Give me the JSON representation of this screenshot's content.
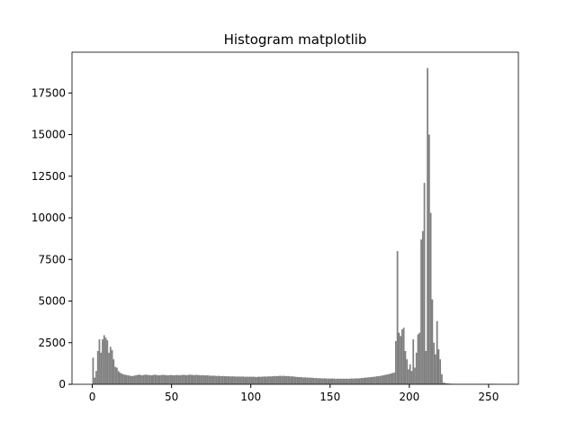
{
  "chart_data": {
    "type": "histogram",
    "title": "Histogram matplotlib",
    "color": "#808080",
    "bins": [
      0,
      1,
      2,
      3,
      4,
      5,
      6,
      7,
      8,
      9,
      10,
      11,
      12,
      13,
      14,
      15,
      16,
      17,
      18,
      19,
      20,
      21,
      22,
      23,
      24,
      25,
      26,
      27,
      28,
      29,
      30,
      31,
      32,
      33,
      34,
      35,
      36,
      37,
      38,
      39,
      40,
      41,
      42,
      43,
      44,
      45,
      46,
      47,
      48,
      49,
      50,
      51,
      52,
      53,
      54,
      55,
      56,
      57,
      58,
      59,
      60,
      61,
      62,
      63,
      64,
      65,
      66,
      67,
      68,
      69,
      70,
      71,
      72,
      73,
      74,
      75,
      76,
      77,
      78,
      79,
      80,
      81,
      82,
      83,
      84,
      85,
      86,
      87,
      88,
      89,
      90,
      91,
      92,
      93,
      94,
      95,
      96,
      97,
      98,
      99,
      100,
      101,
      102,
      103,
      104,
      105,
      106,
      107,
      108,
      109,
      110,
      111,
      112,
      113,
      114,
      115,
      116,
      117,
      118,
      119,
      120,
      121,
      122,
      123,
      124,
      125,
      126,
      127,
      128,
      129,
      130,
      131,
      132,
      133,
      134,
      135,
      136,
      137,
      138,
      139,
      140,
      141,
      142,
      143,
      144,
      145,
      146,
      147,
      148,
      149,
      150,
      151,
      152,
      153,
      154,
      155,
      156,
      157,
      158,
      159,
      160,
      161,
      162,
      163,
      164,
      165,
      166,
      167,
      168,
      169,
      170,
      171,
      172,
      173,
      174,
      175,
      176,
      177,
      178,
      179,
      180,
      181,
      182,
      183,
      184,
      185,
      186,
      187,
      188,
      189,
      190,
      191,
      192,
      193,
      194,
      195,
      196,
      197,
      198,
      199,
      200,
      201,
      202,
      203,
      204,
      205,
      206,
      207,
      208,
      209,
      210,
      211,
      212,
      213,
      214,
      215,
      216,
      217,
      218,
      219,
      220,
      221,
      222,
      223,
      224,
      225,
      226,
      227,
      228,
      229,
      230,
      231,
      232,
      233,
      234,
      235,
      236,
      237,
      238,
      239,
      240,
      241,
      242,
      243,
      244,
      245,
      246,
      247,
      248,
      249,
      250,
      251,
      252,
      253,
      254,
      255,
      256
    ],
    "counts": [
      1600,
      400,
      800,
      2000,
      2700,
      1900,
      2700,
      2950,
      2800,
      2650,
      1900,
      2250,
      2050,
      1500,
      1050,
      1000,
      800,
      700,
      650,
      600,
      580,
      560,
      540,
      520,
      500,
      500,
      520,
      540,
      560,
      580,
      560,
      540,
      560,
      580,
      570,
      560,
      550,
      540,
      560,
      580,
      560,
      550,
      540,
      560,
      570,
      560,
      550,
      540,
      550,
      560,
      550,
      540,
      550,
      560,
      550,
      540,
      560,
      570,
      560,
      550,
      560,
      580,
      570,
      560,
      550,
      570,
      560,
      550,
      540,
      550,
      540,
      530,
      540,
      530,
      520,
      510,
      520,
      510,
      500,
      510,
      500,
      490,
      500,
      490,
      480,
      490,
      480,
      470,
      480,
      470,
      470,
      460,
      470,
      460,
      470,
      460,
      450,
      460,
      450,
      460,
      450,
      460,
      450,
      440,
      450,
      460,
      450,
      460,
      470,
      460,
      470,
      480,
      470,
      480,
      490,
      500,
      490,
      500,
      510,
      500,
      510,
      500,
      490,
      500,
      480,
      470,
      480,
      460,
      450,
      440,
      430,
      440,
      420,
      410,
      420,
      400,
      410,
      390,
      400,
      380,
      370,
      380,
      360,
      370,
      360,
      350,
      360,
      350,
      340,
      350,
      340,
      350,
      340,
      330,
      340,
      330,
      340,
      330,
      340,
      330,
      340,
      330,
      340,
      350,
      340,
      350,
      360,
      350,
      360,
      370,
      380,
      390,
      400,
      410,
      420,
      430,
      440,
      450,
      460,
      480,
      490,
      500,
      520,
      540,
      560,
      580,
      600,
      620,
      650,
      680,
      700,
      2600,
      8000,
      3100,
      2900,
      3300,
      3400,
      2000,
      1500,
      900,
      1200,
      800,
      2700,
      1000,
      1900,
      3000,
      3100,
      8700,
      9200,
      12100,
      2000,
      19000,
      15000,
      10300,
      5100,
      2500,
      1800,
      3800,
      2100,
      1500,
      600,
      100,
      80,
      60,
      50,
      40,
      30,
      30,
      25,
      20,
      20,
      20,
      15,
      15,
      15,
      15,
      15,
      15,
      15,
      15,
      15,
      15,
      15,
      15,
      15,
      15,
      20,
      20,
      25,
      25,
      30,
      30,
      30,
      30,
      25,
      20
    ],
    "xlim": [
      -12.8,
      268.8
    ],
    "ylim": [
      0,
      19950
    ],
    "xticks": [
      0,
      50,
      100,
      150,
      200,
      250
    ],
    "yticks": [
      0,
      2500,
      5000,
      7500,
      10000,
      12500,
      15000,
      17500
    ]
  }
}
